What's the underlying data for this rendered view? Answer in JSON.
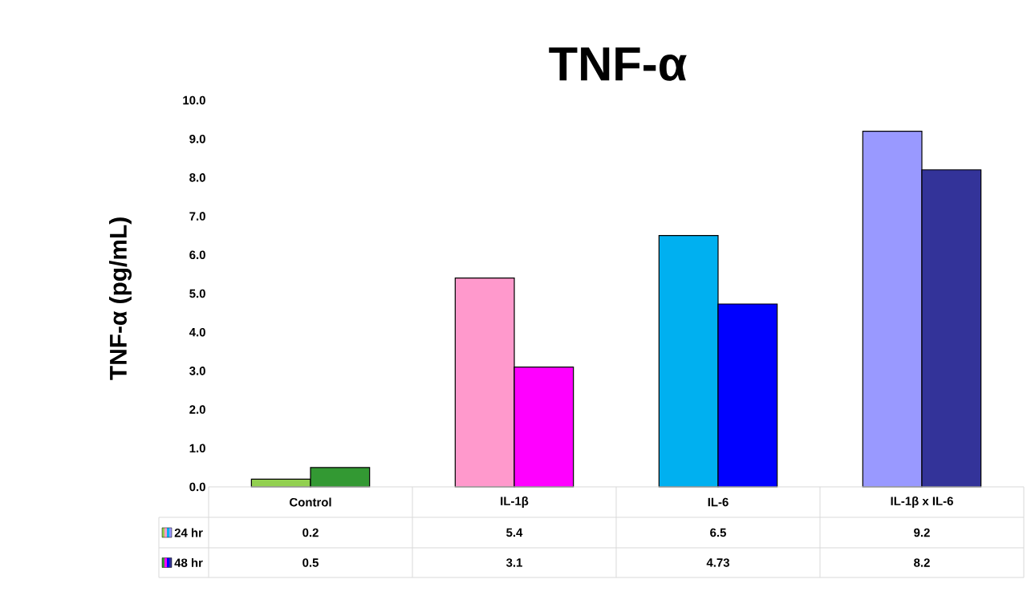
{
  "chart_data": {
    "type": "bar",
    "title": "TNF-α",
    "ylabel": "TNF-α (pg/mL)",
    "categories": [
      "Control",
      "IL-1β",
      "IL-6",
      "IL-1β x IL-6"
    ],
    "series": [
      {
        "name": "24 hr",
        "colors": [
          "#92d050",
          "#ff99cc",
          "#00b0f0",
          "#9999ff"
        ],
        "values": [
          0.2,
          5.4,
          6.5,
          9.2
        ]
      },
      {
        "name": "48 hr",
        "colors": [
          "#339933",
          "#ff00ff",
          "#0000ff",
          "#333399"
        ],
        "values": [
          0.5,
          3.1,
          4.73,
          8.2
        ]
      }
    ],
    "ylim": [
      0,
      10
    ],
    "yticks": [
      {
        "value": 0,
        "label": "0.0"
      },
      {
        "value": 1,
        "label": "1.0"
      },
      {
        "value": 2,
        "label": "2.0"
      },
      {
        "value": 3,
        "label": "3.0"
      },
      {
        "value": 4,
        "label": "4.0"
      },
      {
        "value": 5,
        "label": "5.0"
      },
      {
        "value": 6,
        "label": "6.0"
      },
      {
        "value": 7,
        "label": "7.0"
      },
      {
        "value": 8,
        "label": "8.0"
      },
      {
        "value": 9,
        "label": "9.0"
      },
      {
        "value": 10,
        "label": "10.0"
      }
    ],
    "data_labels": true,
    "legend": "bottom left"
  }
}
